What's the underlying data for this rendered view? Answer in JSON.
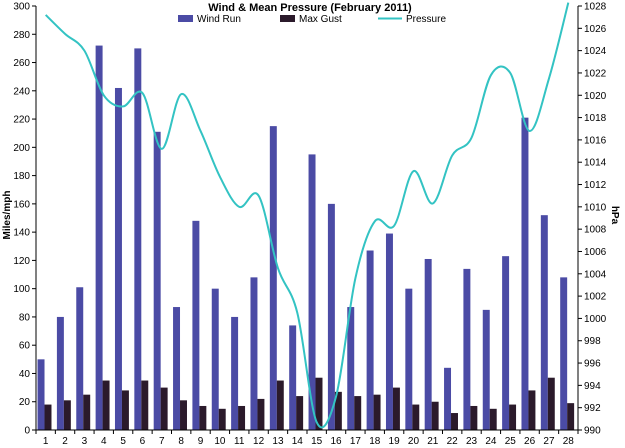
{
  "chart_data": {
    "type": "bar",
    "title": "Wind & Mean Pressure (February 2011)",
    "ylabel": "Miles/mph",
    "y2label": "hPa",
    "categories": [
      "1",
      "2",
      "3",
      "4",
      "5",
      "6",
      "7",
      "8",
      "9",
      "10",
      "11",
      "12",
      "13",
      "14",
      "15",
      "16",
      "17",
      "18",
      "19",
      "20",
      "21",
      "22",
      "23",
      "24",
      "25",
      "26",
      "27",
      "28"
    ],
    "ylim": [
      0,
      300
    ],
    "yticks": [
      0,
      20,
      40,
      60,
      80,
      100,
      120,
      140,
      160,
      180,
      200,
      220,
      240,
      260,
      280,
      300
    ],
    "y2lim": [
      990,
      1028
    ],
    "y2ticks": [
      990,
      992,
      994,
      996,
      998,
      1000,
      1002,
      1004,
      1006,
      1008,
      1010,
      1012,
      1014,
      1016,
      1018,
      1020,
      1022,
      1024,
      1026,
      1028
    ],
    "grid": false,
    "legend": "top",
    "series": [
      {
        "name": "Wind Run",
        "type": "bar",
        "color": "#4B4BA5",
        "values": [
          50,
          80,
          101,
          272,
          242,
          270,
          211,
          87,
          148,
          100,
          80,
          108,
          215,
          74,
          195,
          160,
          87,
          127,
          139,
          100,
          121,
          44,
          114,
          85,
          123,
          221,
          152,
          108
        ]
      },
      {
        "name": "Max Gust",
        "type": "bar",
        "color": "#2B1A2B",
        "values": [
          18,
          21,
          25,
          35,
          28,
          35,
          30,
          21,
          17,
          15,
          17,
          22,
          35,
          24,
          37,
          27,
          24,
          25,
          30,
          18,
          20,
          12,
          17,
          15,
          18,
          28,
          37,
          19
        ]
      },
      {
        "name": "Pressure",
        "type": "line",
        "axis": "right",
        "color": "#33C3C3",
        "values": [
          1027.2,
          1025.5,
          1024,
          1020,
          1019,
          1020.2,
          1015.2,
          1020.1,
          1016.8,
          1012.7,
          1010,
          1011,
          1004.5,
          1000.5,
          990.7,
          993,
          1003.6,
          1008.7,
          1008.3,
          1013.2,
          1010.3,
          1014.6,
          1016.2,
          1021.8,
          1022,
          1016.8,
          1021.5,
          1028.3
        ]
      }
    ]
  }
}
